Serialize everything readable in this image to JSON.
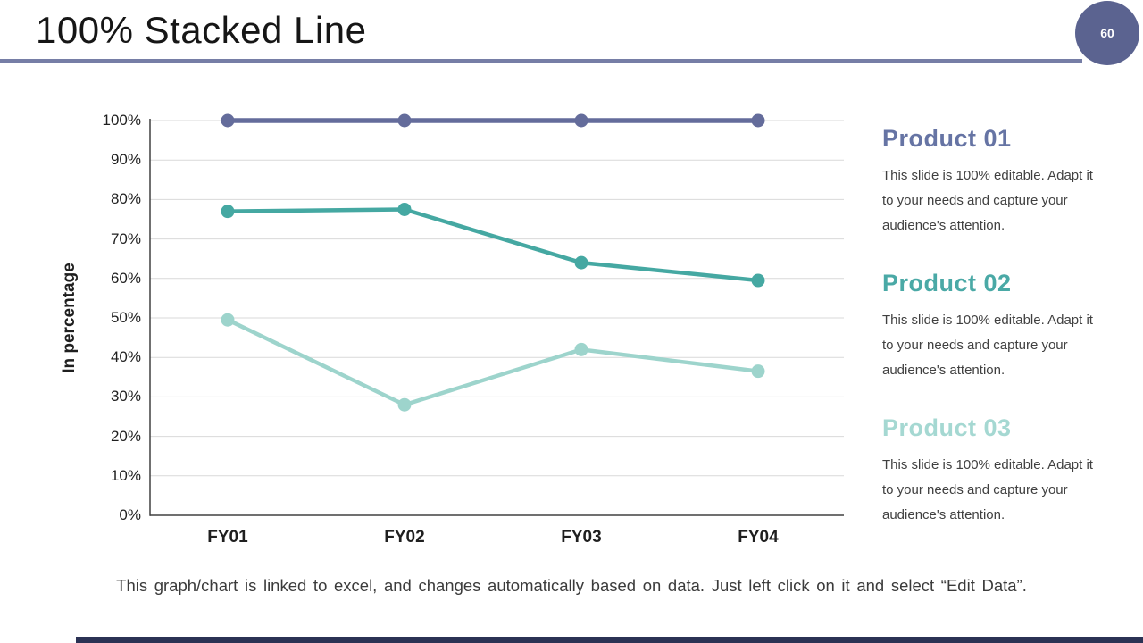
{
  "slide": {
    "title": "100% Stacked Line",
    "page_number": "60",
    "footer_note": "This graph/chart is linked to excel, and changes automatically based on data. Just left click on it and select “Edit Data”.",
    "divider_color": "#767ea6",
    "badge_color": "#5b6390",
    "bottom_bar_color": "#2b3254"
  },
  "chart_data": {
    "type": "line",
    "title": "",
    "xlabel": "",
    "ylabel": "In percentage",
    "categories": [
      "FY01",
      "FY02",
      "FY03",
      "FY04"
    ],
    "y_ticks": [
      "0%",
      "10%",
      "20%",
      "30%",
      "40%",
      "50%",
      "60%",
      "70%",
      "80%",
      "90%",
      "100%"
    ],
    "ylim": [
      0,
      100
    ],
    "grid": true,
    "gridline_color": "#d9d9d9",
    "axis_color": "#404040",
    "legend_position": "right-panel",
    "series": [
      {
        "name": "Product 01",
        "color": "#646c9b",
        "values": [
          100,
          100,
          100,
          100
        ]
      },
      {
        "name": "Product 02",
        "color": "#45a8a2",
        "values": [
          77,
          77.5,
          64,
          59.5
        ]
      },
      {
        "name": "Product 03",
        "color": "#9dd4cc",
        "values": [
          49.5,
          28,
          42,
          36.5
        ]
      }
    ]
  },
  "legend_panel": {
    "items": [
      {
        "title": "Product 01",
        "color": "#6674a4",
        "description": "This slide is 100% editable. Adapt it to your needs and capture your audience's attention."
      },
      {
        "title": "Product 02",
        "color": "#4aa9a6",
        "description": "This slide is 100% editable. Adapt it to your needs and capture your audience's attention."
      },
      {
        "title": "Product 03",
        "color": "#a5d8d2",
        "description": "This slide is 100% editable. Adapt it to your needs and capture your audience's attention."
      }
    ]
  }
}
